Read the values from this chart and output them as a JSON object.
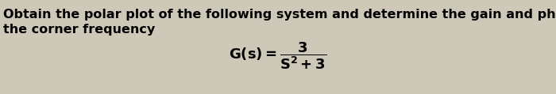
{
  "background_color": "#cdc8b8",
  "text_line1": "Obtain the polar plot of the following system and determine the gain and phase shift at",
  "text_line2": "the corner frequency",
  "formula": "$\\mathbf{G(s) = \\dfrac{3}{S^2 + 3}}$",
  "text_color": "#000000",
  "text_fontsize": 11.5,
  "formula_fontsize": 13,
  "fig_width": 7.0,
  "fig_height": 1.19,
  "dpi": 100
}
